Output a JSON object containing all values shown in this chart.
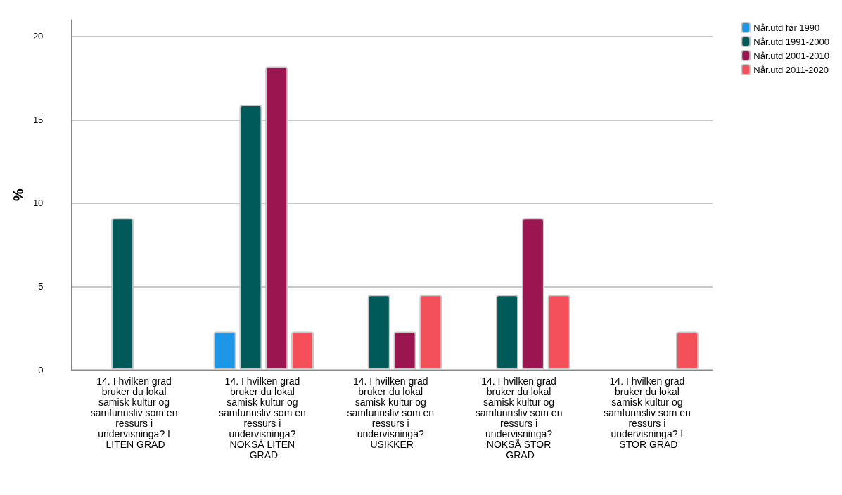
{
  "chart_data": {
    "type": "bar",
    "ylabel": "%",
    "categories": [
      "14. I hvilken grad bruker du lokal samisk kultur og samfunnsliv som en ressurs i undervisninga? I LITEN GRAD",
      "14. I hvilken grad bruker du lokal samisk kultur og samfunnsliv som en ressurs i undervisninga? NOKSÅ LITEN GRAD",
      "14. I hvilken grad bruker du lokal samisk kultur og samfunnsliv som en ressurs i undervisninga? USIKKER",
      "14. I hvilken grad bruker du lokal samisk kultur og samfunnsliv som en ressurs i undervisninga? NOKSÅ STOR GRAD",
      "14. I hvilken grad bruker du lokal samisk kultur og samfunnsliv som en ressurs i undervisninga? I STOR GRAD"
    ],
    "series": [
      {
        "name": "Når.utd før 1990",
        "color": "#1e96e6",
        "values": [
          0,
          2.3,
          0,
          0,
          0
        ]
      },
      {
        "name": "Når.utd 1991-2000",
        "color": "#005a5a",
        "values": [
          9.1,
          15.9,
          4.5,
          4.5,
          0
        ]
      },
      {
        "name": "Når.utd 2001-2010",
        "color": "#9b1550",
        "values": [
          0,
          18.2,
          2.3,
          9.1,
          0
        ]
      },
      {
        "name": "Når.utd 2011-2020",
        "color": "#f4505a",
        "values": [
          0,
          2.3,
          4.5,
          4.5,
          2.3
        ]
      }
    ],
    "ylim": [
      0,
      21
    ],
    "yticks": [
      0,
      5,
      10,
      15,
      20
    ],
    "grid": "y",
    "legend": "top right"
  }
}
